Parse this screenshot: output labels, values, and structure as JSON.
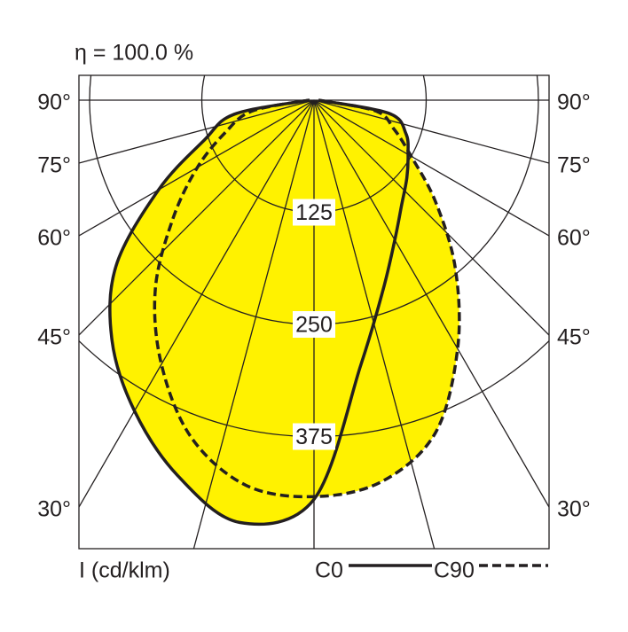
{
  "chart_data": {
    "type": "polar",
    "title": "η = 100.0 %",
    "axis_label": "I (cd/klm)",
    "x": [
      -90,
      -80,
      -70,
      -60,
      -50,
      -40,
      -30,
      -20,
      -10,
      0,
      10,
      20,
      30,
      40,
      50,
      60,
      70,
      80,
      90
    ],
    "series": [
      {
        "name": "C0",
        "color": "#231f20",
        "dashed": false,
        "values": [
          5,
          90,
          130,
          200,
          288,
          350,
          400,
          445,
          478,
          445,
          300,
          225,
          180,
          152,
          135,
          121,
          109,
          85,
          5
        ]
      },
      {
        "name": "C90",
        "color": "#231f20",
        "dashed": true,
        "values": [
          5,
          70,
          105,
          150,
          205,
          275,
          340,
          400,
          436,
          442,
          432,
          395,
          320,
          245,
          177,
          125,
          95,
          70,
          5
        ]
      }
    ],
    "fill_color": "#fff200",
    "rlim": [
      0,
      500
    ],
    "rticks": [
      125,
      250,
      375
    ],
    "angle_ticks": [
      {
        "value": 90,
        "label": "90°"
      },
      {
        "value": 75,
        "label": "75°"
      },
      {
        "value": 60,
        "label": "60°"
      },
      {
        "value": 45,
        "label": "45°"
      },
      {
        "value": 30,
        "label": "30°"
      }
    ]
  }
}
